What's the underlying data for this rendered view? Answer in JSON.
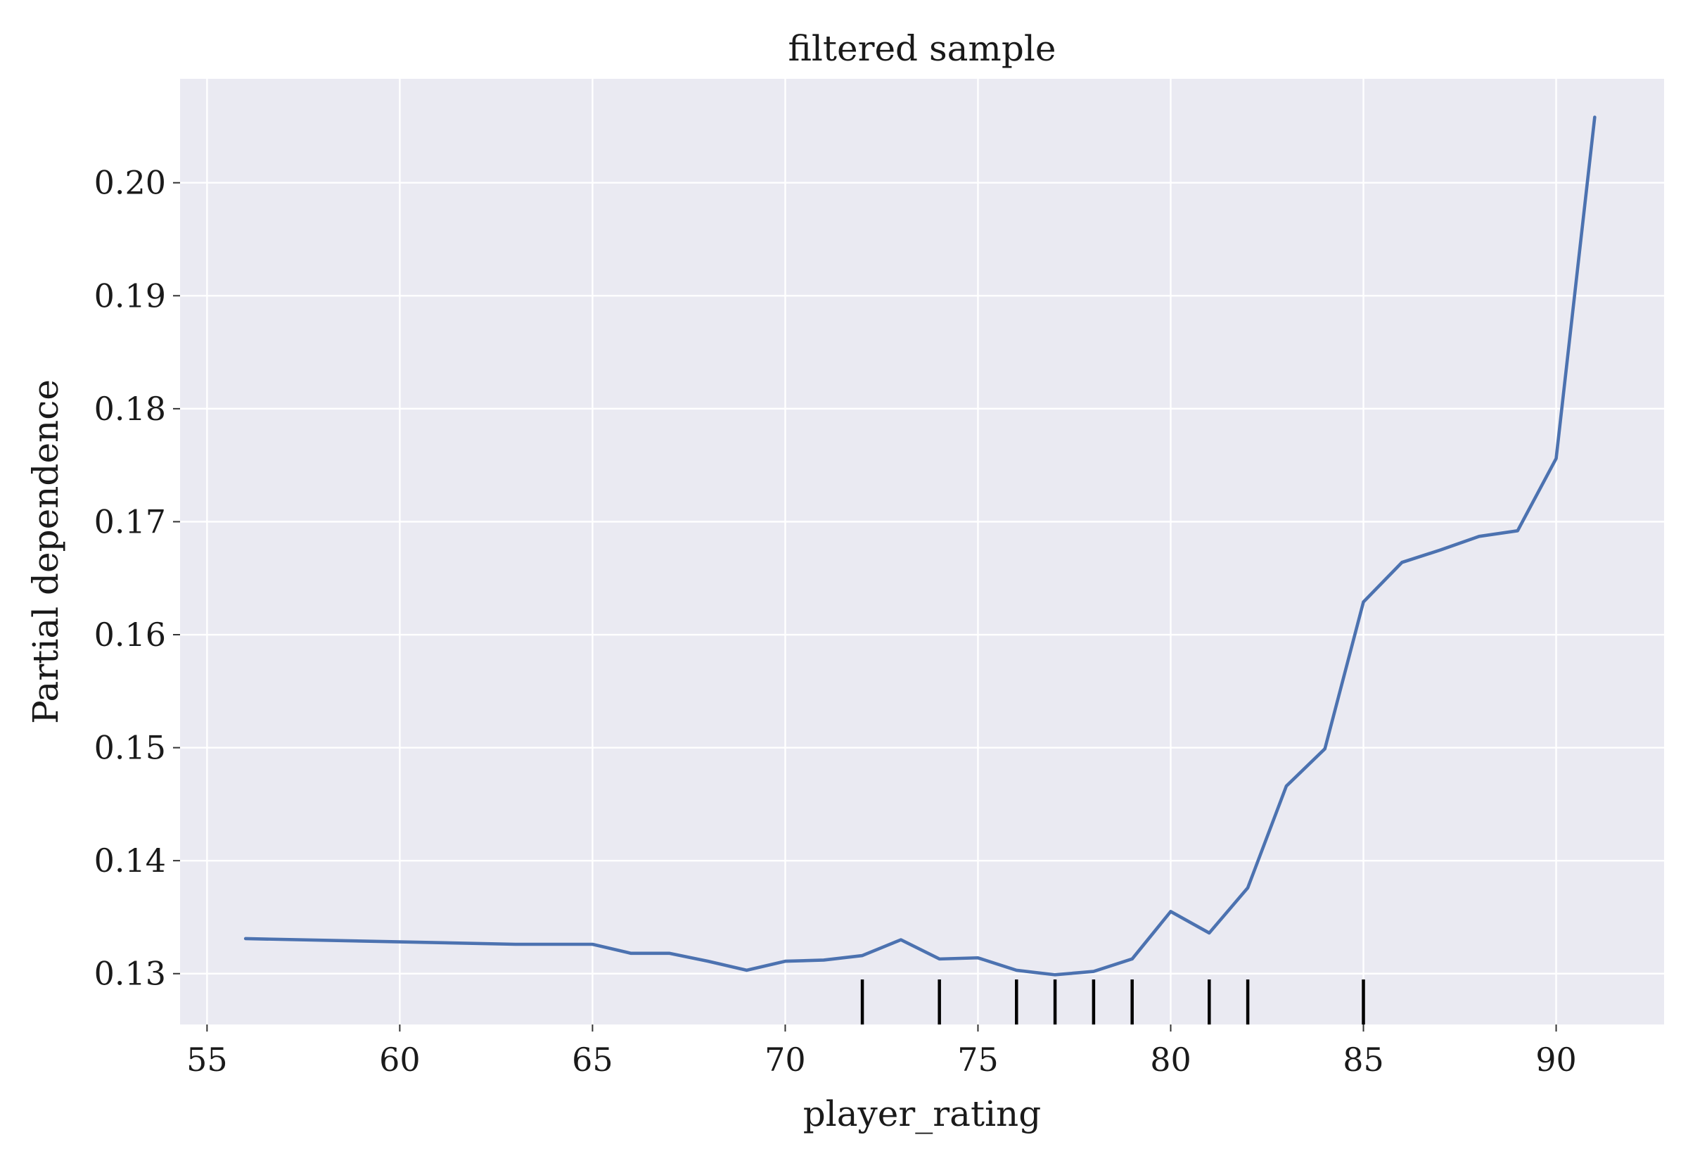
{
  "chart_data": {
    "type": "line",
    "title": "filtered sample",
    "xlabel": "player_rating",
    "ylabel": "Partial dependence",
    "xlim": [
      54.3,
      92.8
    ],
    "ylim": [
      0.1255,
      0.2092
    ],
    "xticks": [
      55,
      60,
      65,
      70,
      75,
      80,
      85,
      90
    ],
    "xtick_labels": [
      "55",
      "60",
      "65",
      "70",
      "75",
      "80",
      "85",
      "90"
    ],
    "yticks": [
      0.13,
      0.14,
      0.15,
      0.16,
      0.17,
      0.18,
      0.19,
      0.2
    ],
    "ytick_labels": [
      "0.13",
      "0.14",
      "0.15",
      "0.16",
      "0.17",
      "0.18",
      "0.19",
      "0.20"
    ],
    "grid": true,
    "background_color": "#eaeaf2",
    "grid_color": "#ffffff",
    "line_color": "#4c72b0",
    "rug_color": "#000000",
    "series": [
      {
        "x": [
          56,
          63,
          65,
          66,
          67,
          68,
          69,
          70,
          71,
          72,
          73,
          74,
          75,
          76,
          77,
          78,
          79,
          80,
          81,
          82,
          83,
          84,
          85,
          86,
          87,
          88,
          89,
          90,
          91
        ],
        "y": [
          0.1331,
          0.1326,
          0.1326,
          0.1318,
          0.1318,
          0.1311,
          0.1303,
          0.1311,
          0.1312,
          0.1316,
          0.133,
          0.1313,
          0.1314,
          0.1303,
          0.1299,
          0.1302,
          0.1313,
          0.1355,
          0.1336,
          0.1376,
          0.1466,
          0.1499,
          0.1629,
          0.1664,
          0.1675,
          0.1687,
          0.1692,
          0.1756,
          0.2058
        ]
      }
    ],
    "rug_x": [
      72,
      74,
      76,
      77,
      78,
      79,
      81,
      82,
      85
    ]
  }
}
